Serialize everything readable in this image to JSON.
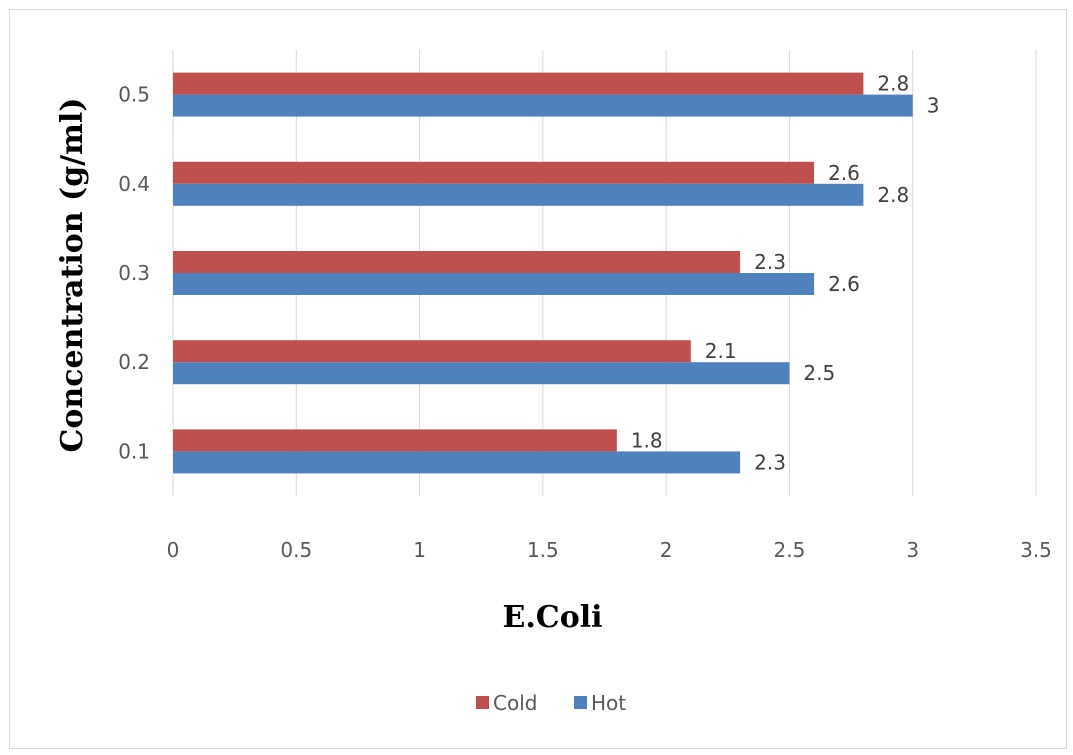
{
  "chart_data": {
    "type": "bar",
    "orientation": "horizontal",
    "categories": [
      "0.1",
      "0.2",
      "0.3",
      "0.4",
      "0.5"
    ],
    "series": [
      {
        "name": "Cold",
        "values": [
          1.8,
          2.1,
          2.3,
          2.6,
          2.8
        ],
        "color": "#c0504d"
      },
      {
        "name": "Hot",
        "values": [
          2.3,
          2.5,
          2.6,
          2.8,
          3
        ],
        "color": "#4f81bd"
      }
    ],
    "data_labels": {
      "Cold": [
        "1.8",
        "2.1",
        "2.3",
        "2.6",
        "2.8"
      ],
      "Hot": [
        "2.3",
        "2.5",
        "2.6",
        "2.8",
        "3"
      ]
    },
    "title": "",
    "xlabel": "E.Coli",
    "ylabel": "Concentration (g/ml)",
    "xlim": [
      0,
      3.5
    ],
    "xticks": [
      "0",
      "0.5",
      "1",
      "1.5",
      "2",
      "2.5",
      "3",
      "3.5"
    ],
    "grid": "vertical",
    "legend_position": "bottom",
    "legend": [
      "Cold",
      "Hot"
    ]
  }
}
